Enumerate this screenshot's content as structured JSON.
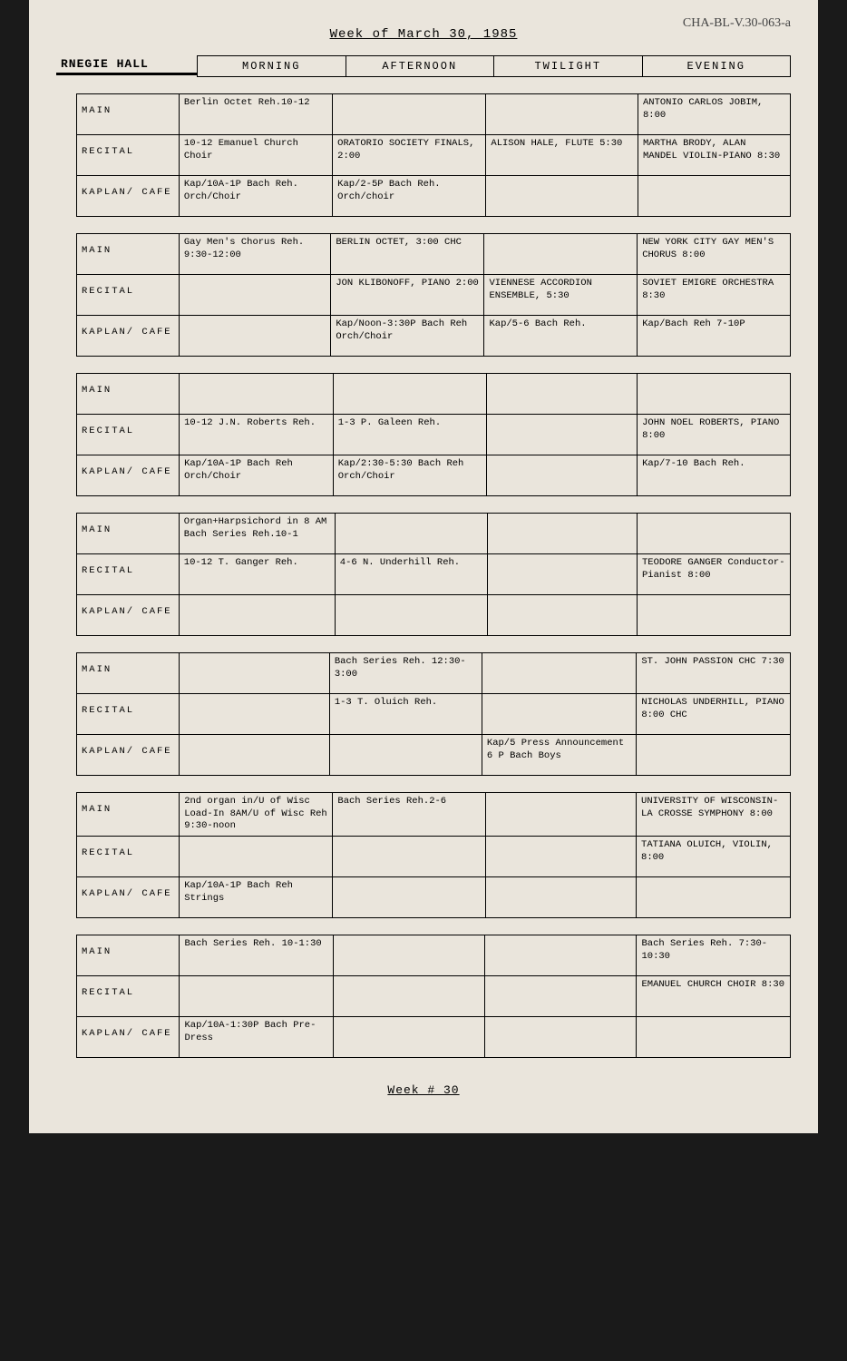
{
  "handwritten_note": "CHA-BL-V.30-063-a",
  "title": "Week of March 30, 1985",
  "logo": "RNEGIE HALL",
  "time_headers": [
    "MORNING",
    "AFTERNOON",
    "TWILIGHT",
    "EVENING"
  ],
  "venues": [
    "MAIN",
    "RECITAL",
    "KAPLAN/ CAFE"
  ],
  "days": [
    {
      "side": "",
      "rows": [
        [
          "Berlin Octet Reh.10-12",
          "",
          "",
          "ANTONIO CARLOS JOBIM, 8:00"
        ],
        [
          "10-12 Emanuel Church Choir",
          "ORATORIO SOCIETY FINALS, 2:00",
          "ALISON HALE, FLUTE 5:30",
          "MARTHA BRODY, ALAN MANDEL VIOLIN-PIANO 8:30"
        ],
        [
          "Kap/10A-1P Bach Reh. Orch/Choir",
          "Kap/2-5P Bach Reh. Orch/choir",
          "",
          ""
        ]
      ]
    },
    {
      "side": "",
      "rows": [
        [
          "Gay Men's Chorus Reh. 9:30-12:00",
          "BERLIN OCTET, 3:00 CHC",
          "",
          "NEW YORK CITY GAY MEN'S CHORUS   8:00"
        ],
        [
          "",
          "JON KLIBONOFF, PIANO       2:00",
          "VIENNESE ACCORDION ENSEMBLE, 5:30",
          "SOVIET EMIGRE ORCHESTRA 8:30"
        ],
        [
          "",
          "Kap/Noon-3:30P Bach Reh Orch/Choir",
          "Kap/5-6 Bach Reh.",
          "Kap/Bach Reh 7-10P"
        ]
      ]
    },
    {
      "side": "",
      "rows": [
        [
          "",
          "",
          "",
          ""
        ],
        [
          "10-12 J.N. Roberts Reh.",
          "1-3 P. Galeen Reh.",
          "",
          "JOHN NOEL ROBERTS, PIANO    8:00"
        ],
        [
          "Kap/10A-1P Bach Reh Orch/Choir",
          "Kap/2:30-5:30 Bach Reh Orch/Choir",
          "",
          "Kap/7-10 Bach Reh."
        ]
      ]
    },
    {
      "side": "",
      "rows": [
        [
          "Organ+Harpsichord in 8 AM\nBach Series Reh.10-1",
          "",
          "",
          ""
        ],
        [
          "10-12 T. Ganger  Reh.",
          "4-6 N. Underhill Reh.",
          "",
          "TEODORE GANGER Conductor-Pianist 8:00"
        ],
        [
          "",
          "",
          "",
          ""
        ]
      ]
    },
    {
      "side": "",
      "rows": [
        [
          "",
          "Bach Series Reh. 12:30-3:00",
          "",
          "ST. JOHN PASSION CHC       7:30"
        ],
        [
          "",
          "1-3 T. Oluich Reh.",
          "",
          "NICHOLAS UNDERHILL, PIANO      8:00 CHC"
        ],
        [
          "",
          "",
          "Kap/5 Press Announcement 6 P Bach Boys",
          ""
        ]
      ]
    },
    {
      "side": "",
      "rows": [
        [
          "2nd organ in/U of Wisc Load-In 8AM/U of Wisc Reh 9:30-noon",
          "Bach Series Reh.2-6",
          "",
          "UNIVERSITY OF WISCONSIN-LA CROSSE SYMPHONY    8:00"
        ],
        [
          "",
          "",
          "",
          "TATIANA OLUICH, VIOLIN,    8:00"
        ],
        [
          "Kap/10A-1P Bach Reh Strings",
          "",
          "",
          ""
        ]
      ]
    },
    {
      "side": "",
      "rows": [
        [
          "Bach Series Reh. 10-1:30",
          "",
          "",
          "Bach Series Reh. 7:30-10:30"
        ],
        [
          "",
          "",
          "",
          "EMANUEL CHURCH CHOIR 8:30"
        ],
        [
          "Kap/10A-1:30P Bach Pre-Dress",
          "",
          "",
          ""
        ]
      ]
    }
  ],
  "footer": "Week # 30"
}
